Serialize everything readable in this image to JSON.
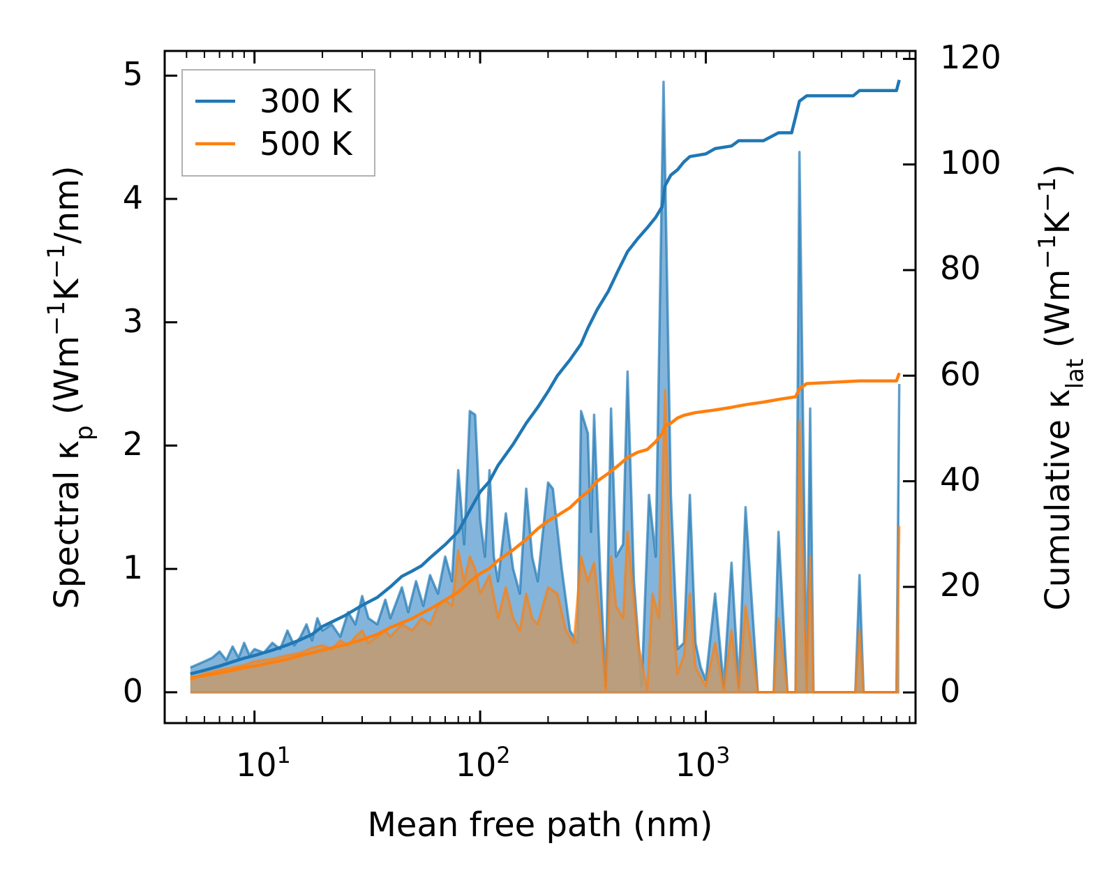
{
  "chart_data": {
    "type": "line",
    "title": "",
    "xlabel": "Mean free path (nm)",
    "ylabel_left": {
      "main": "Spectral κ",
      "sub": "p",
      "unit_prefix": " (Wm",
      "exp1": "−1",
      "mid": "K",
      "exp2": "−1",
      "unit_suffix": "/nm)"
    },
    "ylabel_right": {
      "main": "Cumulative κ",
      "sub": "lat",
      "unit_prefix": " (Wm",
      "exp1": "−1",
      "mid": "K",
      "exp2": "−1",
      "unit_suffix": ")"
    },
    "xscale": "log",
    "xlim": [
      4.0,
      8500
    ],
    "ylim_left": [
      -0.25,
      5.2
    ],
    "ylim_right": [
      -5.8,
      121.5
    ],
    "x_ticks": [
      {
        "base": "10",
        "exp": "1",
        "value": 10
      },
      {
        "base": "10",
        "exp": "2",
        "value": 100
      },
      {
        "base": "10",
        "exp": "3",
        "value": 1000
      }
    ],
    "y_ticks_left": [
      "0",
      "1",
      "2",
      "3",
      "4",
      "5"
    ],
    "y_ticks_right": [
      "0",
      "20",
      "40",
      "60",
      "80",
      "100",
      "120"
    ],
    "legend": {
      "position": "upper-left",
      "entries": [
        "300 K",
        "500 K"
      ]
    },
    "colors": {
      "series_300": "#1f77b4",
      "series_500": "#ff7f0e",
      "fill_300": "#5a9bcf",
      "fill_500": "#c49a6c"
    },
    "spectral": [
      {
        "name": "300 K",
        "points": [
          [
            5.2,
            0.2
          ],
          [
            5.5,
            0.22
          ],
          [
            6,
            0.25
          ],
          [
            6.5,
            0.28
          ],
          [
            7,
            0.33
          ],
          [
            7.5,
            0.26
          ],
          [
            8,
            0.37
          ],
          [
            8.5,
            0.28
          ],
          [
            9,
            0.4
          ],
          [
            9.5,
            0.3
          ],
          [
            10,
            0.35
          ],
          [
            11,
            0.32
          ],
          [
            12,
            0.4
          ],
          [
            13,
            0.35
          ],
          [
            14,
            0.5
          ],
          [
            15,
            0.38
          ],
          [
            16,
            0.45
          ],
          [
            17,
            0.55
          ],
          [
            18,
            0.42
          ],
          [
            19,
            0.6
          ],
          [
            20,
            0.5
          ],
          [
            22,
            0.55
          ],
          [
            24,
            0.45
          ],
          [
            26,
            0.65
          ],
          [
            28,
            0.55
          ],
          [
            30,
            0.78
          ],
          [
            32,
            0.6
          ],
          [
            35,
            0.55
          ],
          [
            38,
            0.75
          ],
          [
            40,
            0.6
          ],
          [
            45,
            0.85
          ],
          [
            48,
            0.65
          ],
          [
            52,
            0.9
          ],
          [
            56,
            0.7
          ],
          [
            60,
            0.95
          ],
          [
            65,
            0.8
          ],
          [
            70,
            1.1
          ],
          [
            75,
            0.9
          ],
          [
            80,
            1.8
          ],
          [
            85,
            1.2
          ],
          [
            90,
            2.28
          ],
          [
            95,
            2.25
          ],
          [
            100,
            1.4
          ],
          [
            105,
            1.1
          ],
          [
            110,
            1.8
          ],
          [
            115,
            1.1
          ],
          [
            120,
            0.9
          ],
          [
            130,
            1.45
          ],
          [
            140,
            1.0
          ],
          [
            150,
            0.8
          ],
          [
            160,
            1.65
          ],
          [
            170,
            1.1
          ],
          [
            180,
            0.9
          ],
          [
            200,
            1.7
          ],
          [
            210,
            1.65
          ],
          [
            230,
            1.0
          ],
          [
            250,
            0.5
          ],
          [
            270,
            0.4
          ],
          [
            280,
            2.28
          ],
          [
            300,
            2.1
          ],
          [
            310,
            1.3
          ],
          [
            320,
            2.25
          ],
          [
            340,
            1.0
          ],
          [
            360,
            0.05
          ],
          [
            380,
            2.3
          ],
          [
            400,
            1.1
          ],
          [
            430,
            1.2
          ],
          [
            450,
            2.6
          ],
          [
            480,
            0.9
          ],
          [
            520,
            0.05
          ],
          [
            560,
            1.6
          ],
          [
            600,
            1.1
          ],
          [
            650,
            4.95
          ],
          [
            700,
            1.6
          ],
          [
            750,
            0.35
          ],
          [
            800,
            0.4
          ],
          [
            850,
            1.6
          ],
          [
            900,
            0.4
          ],
          [
            950,
            0.2
          ],
          [
            1000,
            0.1
          ],
          [
            1100,
            0.8
          ],
          [
            1200,
            0.05
          ],
          [
            1300,
            1.05
          ],
          [
            1400,
            0.05
          ],
          [
            1500,
            1.5
          ],
          [
            1700,
            0.0
          ],
          [
            2000,
            0.0
          ],
          [
            2100,
            1.3
          ],
          [
            2300,
            0.0
          ],
          [
            2500,
            0.0
          ],
          [
            2600,
            4.38
          ],
          [
            2800,
            0.0
          ],
          [
            2900,
            2.3
          ],
          [
            3000,
            0.0
          ],
          [
            4600,
            0.0
          ],
          [
            4800,
            0.95
          ],
          [
            5000,
            0.0
          ],
          [
            7000,
            0.0
          ],
          [
            7200,
            2.5
          ]
        ]
      },
      {
        "name": "500 K",
        "points": [
          [
            5.2,
            0.1
          ],
          [
            6,
            0.15
          ],
          [
            7,
            0.18
          ],
          [
            8,
            0.2
          ],
          [
            9,
            0.22
          ],
          [
            10,
            0.25
          ],
          [
            12,
            0.27
          ],
          [
            14,
            0.3
          ],
          [
            16,
            0.32
          ],
          [
            18,
            0.36
          ],
          [
            20,
            0.38
          ],
          [
            22,
            0.35
          ],
          [
            24,
            0.42
          ],
          [
            26,
            0.38
          ],
          [
            28,
            0.45
          ],
          [
            30,
            0.5
          ],
          [
            32,
            0.4
          ],
          [
            35,
            0.45
          ],
          [
            38,
            0.5
          ],
          [
            40,
            0.45
          ],
          [
            45,
            0.55
          ],
          [
            50,
            0.5
          ],
          [
            55,
            0.6
          ],
          [
            60,
            0.55
          ],
          [
            65,
            0.7
          ],
          [
            70,
            0.75
          ],
          [
            75,
            0.7
          ],
          [
            80,
            1.15
          ],
          [
            85,
            0.9
          ],
          [
            90,
            1.1
          ],
          [
            95,
            1.0
          ],
          [
            100,
            0.8
          ],
          [
            110,
            0.95
          ],
          [
            120,
            0.6
          ],
          [
            130,
            0.85
          ],
          [
            140,
            0.6
          ],
          [
            150,
            0.5
          ],
          [
            160,
            0.8
          ],
          [
            170,
            0.6
          ],
          [
            180,
            0.55
          ],
          [
            200,
            0.85
          ],
          [
            220,
            0.8
          ],
          [
            240,
            0.5
          ],
          [
            260,
            0.4
          ],
          [
            280,
            1.1
          ],
          [
            300,
            0.9
          ],
          [
            320,
            1.05
          ],
          [
            340,
            0.6
          ],
          [
            360,
            0.02
          ],
          [
            380,
            1.1
          ],
          [
            400,
            0.7
          ],
          [
            430,
            0.6
          ],
          [
            450,
            1.3
          ],
          [
            500,
            0.4
          ],
          [
            550,
            0.02
          ],
          [
            580,
            0.8
          ],
          [
            620,
            0.6
          ],
          [
            660,
            2.45
          ],
          [
            700,
            0.8
          ],
          [
            750,
            0.15
          ],
          [
            800,
            0.3
          ],
          [
            850,
            0.8
          ],
          [
            900,
            0.2
          ],
          [
            1000,
            0.05
          ],
          [
            1100,
            0.4
          ],
          [
            1200,
            0.02
          ],
          [
            1300,
            0.5
          ],
          [
            1400,
            0.02
          ],
          [
            1500,
            0.7
          ],
          [
            1700,
            0.0
          ],
          [
            2000,
            0.0
          ],
          [
            2100,
            0.6
          ],
          [
            2300,
            0.0
          ],
          [
            2500,
            0.0
          ],
          [
            2600,
            2.2
          ],
          [
            2800,
            0.0
          ],
          [
            2900,
            1.1
          ],
          [
            3000,
            0.0
          ],
          [
            4600,
            0.0
          ],
          [
            4800,
            0.5
          ],
          [
            5000,
            0.0
          ],
          [
            7000,
            0.0
          ],
          [
            7200,
            1.35
          ]
        ]
      }
    ],
    "cumulative": [
      {
        "name": "300 K",
        "points": [
          [
            5.2,
            3.5
          ],
          [
            6,
            4.2
          ],
          [
            7,
            5
          ],
          [
            8,
            5.8
          ],
          [
            9,
            6.5
          ],
          [
            10,
            7
          ],
          [
            12,
            8
          ],
          [
            14,
            9
          ],
          [
            16,
            10
          ],
          [
            18,
            11
          ],
          [
            20,
            12.5
          ],
          [
            25,
            14.5
          ],
          [
            30,
            16.5
          ],
          [
            35,
            18
          ],
          [
            40,
            20
          ],
          [
            45,
            22
          ],
          [
            50,
            23
          ],
          [
            55,
            24
          ],
          [
            60,
            25.5
          ],
          [
            70,
            28
          ],
          [
            80,
            30.5
          ],
          [
            90,
            34.5
          ],
          [
            100,
            38
          ],
          [
            110,
            40
          ],
          [
            120,
            43
          ],
          [
            140,
            47
          ],
          [
            160,
            51
          ],
          [
            180,
            54
          ],
          [
            200,
            57
          ],
          [
            220,
            60
          ],
          [
            250,
            63
          ],
          [
            280,
            66
          ],
          [
            300,
            69
          ],
          [
            330,
            72.5
          ],
          [
            370,
            76
          ],
          [
            410,
            80
          ],
          [
            450,
            83.5
          ],
          [
            500,
            86
          ],
          [
            550,
            88
          ],
          [
            600,
            90
          ],
          [
            640,
            92
          ],
          [
            660,
            96
          ],
          [
            700,
            98
          ],
          [
            750,
            99
          ],
          [
            800,
            100.5
          ],
          [
            850,
            101.5
          ],
          [
            1000,
            102
          ],
          [
            1100,
            103
          ],
          [
            1300,
            103.5
          ],
          [
            1400,
            104.5
          ],
          [
            1800,
            104.5
          ],
          [
            2100,
            106
          ],
          [
            2400,
            106
          ],
          [
            2500,
            109
          ],
          [
            2600,
            112
          ],
          [
            2800,
            113
          ],
          [
            3000,
            113
          ],
          [
            4500,
            113
          ],
          [
            4800,
            114
          ],
          [
            7000,
            114
          ],
          [
            7200,
            116
          ]
        ]
      },
      {
        "name": "500 K",
        "points": [
          [
            5.2,
            2.8
          ],
          [
            6,
            3.2
          ],
          [
            7,
            3.7
          ],
          [
            8,
            4.2
          ],
          [
            9,
            4.7
          ],
          [
            10,
            5
          ],
          [
            12,
            5.7
          ],
          [
            14,
            6.3
          ],
          [
            16,
            7
          ],
          [
            18,
            7.5
          ],
          [
            20,
            8
          ],
          [
            25,
            9
          ],
          [
            30,
            10
          ],
          [
            35,
            11
          ],
          [
            40,
            12.3
          ],
          [
            45,
            13.2
          ],
          [
            50,
            14
          ],
          [
            55,
            15
          ],
          [
            60,
            15.8
          ],
          [
            70,
            17.5
          ],
          [
            80,
            19
          ],
          [
            90,
            21
          ],
          [
            100,
            22.5
          ],
          [
            110,
            23.5
          ],
          [
            120,
            25
          ],
          [
            140,
            27
          ],
          [
            160,
            29
          ],
          [
            180,
            31
          ],
          [
            200,
            32.5
          ],
          [
            220,
            33.5
          ],
          [
            250,
            35
          ],
          [
            280,
            37
          ],
          [
            300,
            38
          ],
          [
            330,
            40
          ],
          [
            370,
            41.5
          ],
          [
            410,
            43
          ],
          [
            450,
            44.5
          ],
          [
            500,
            45.5
          ],
          [
            550,
            46
          ],
          [
            600,
            47.5
          ],
          [
            640,
            49
          ],
          [
            660,
            50.5
          ],
          [
            700,
            51
          ],
          [
            750,
            52
          ],
          [
            800,
            52.5
          ],
          [
            900,
            53
          ],
          [
            1100,
            53.5
          ],
          [
            1300,
            54
          ],
          [
            1500,
            54.5
          ],
          [
            1800,
            55
          ],
          [
            2100,
            55.5
          ],
          [
            2500,
            56
          ],
          [
            2600,
            57.5
          ],
          [
            2800,
            58.5
          ],
          [
            4800,
            59
          ],
          [
            7000,
            59
          ],
          [
            7200,
            60.5
          ]
        ]
      }
    ]
  }
}
